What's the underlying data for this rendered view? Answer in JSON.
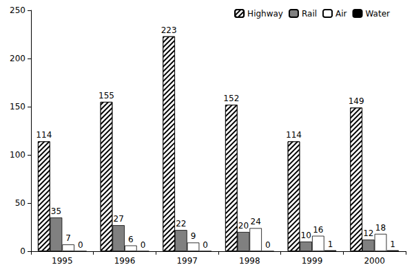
{
  "chart_data": {
    "type": "bar",
    "categories": [
      "1995",
      "1996",
      "1997",
      "1998",
      "1999",
      "2000"
    ],
    "series": [
      {
        "name": "Highway",
        "color": "#ffffff",
        "values": [
          114,
          155,
          223,
          152,
          114,
          149
        ]
      },
      {
        "name": "Rail",
        "color": "#808080",
        "values": [
          35,
          27,
          22,
          20,
          10,
          12
        ]
      },
      {
        "name": "Air",
        "color": "#ffffff",
        "values": [
          7,
          6,
          9,
          24,
          16,
          18
        ]
      },
      {
        "name": "Water",
        "color": "#000000",
        "values": [
          0,
          0,
          0,
          0,
          1,
          1
        ]
      }
    ],
    "ylim": [
      0,
      250
    ],
    "yticks": [
      0,
      50,
      100,
      150,
      200,
      250
    ],
    "grid": false,
    "legend": "top-right",
    "data_labels": true
  }
}
